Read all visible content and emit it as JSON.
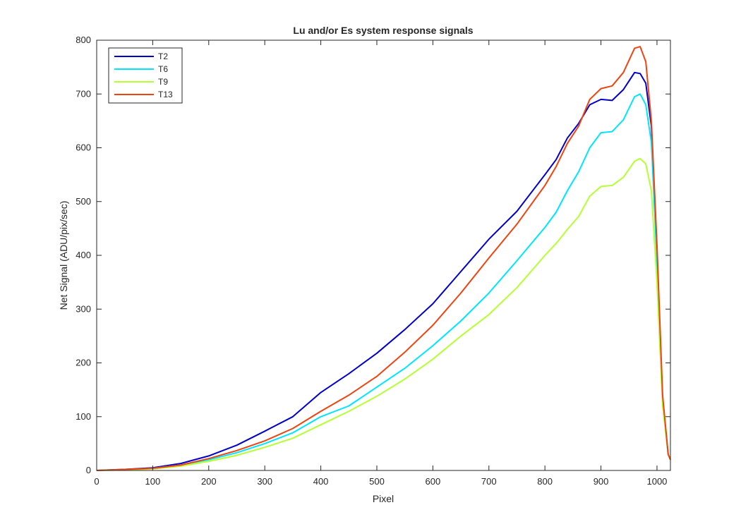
{
  "chart_data": {
    "type": "line",
    "title": "Lu and/or Es system response signals",
    "xlabel": "Pixel",
    "ylabel": "Net Signal (ADU/pix/sec)",
    "xlim": [
      0,
      1024
    ],
    "ylim": [
      0,
      800
    ],
    "xticks": [
      0,
      100,
      200,
      300,
      400,
      500,
      600,
      700,
      800,
      900,
      1000
    ],
    "yticks": [
      0,
      100,
      200,
      300,
      400,
      500,
      600,
      700,
      800
    ],
    "grid": false,
    "legend_position": "top-left",
    "series": [
      {
        "name": "T2",
        "color": "#0000cc",
        "x": [
          0,
          50,
          100,
          150,
          200,
          250,
          300,
          350,
          400,
          450,
          500,
          550,
          600,
          650,
          700,
          750,
          800,
          820,
          840,
          860,
          880,
          900,
          920,
          940,
          960,
          970,
          980,
          990,
          1000,
          1010,
          1020,
          1024
        ],
        "y": [
          0,
          2,
          5,
          13,
          27,
          47,
          73,
          100,
          145,
          180,
          218,
          262,
          310,
          370,
          430,
          482,
          550,
          578,
          618,
          645,
          680,
          690,
          688,
          708,
          740,
          738,
          720,
          640,
          400,
          130,
          30,
          20
        ]
      },
      {
        "name": "T6",
        "color": "#00e5ff",
        "x": [
          0,
          50,
          100,
          150,
          200,
          250,
          300,
          350,
          400,
          450,
          500,
          550,
          600,
          650,
          700,
          750,
          800,
          820,
          840,
          860,
          880,
          900,
          920,
          940,
          960,
          970,
          980,
          990,
          1000,
          1010,
          1020,
          1024
        ],
        "y": [
          0,
          1,
          4,
          10,
          20,
          33,
          50,
          70,
          100,
          120,
          155,
          190,
          232,
          278,
          330,
          390,
          452,
          480,
          520,
          555,
          600,
          628,
          630,
          652,
          695,
          700,
          680,
          610,
          390,
          130,
          30,
          20
        ]
      },
      {
        "name": "T9",
        "color": "#b5ff33",
        "x": [
          0,
          50,
          100,
          150,
          200,
          250,
          300,
          350,
          400,
          450,
          500,
          550,
          600,
          650,
          700,
          750,
          800,
          820,
          840,
          860,
          880,
          900,
          920,
          940,
          960,
          970,
          980,
          990,
          1000,
          1010,
          1020,
          1024
        ],
        "y": [
          0,
          1,
          3,
          8,
          17,
          28,
          43,
          60,
          85,
          110,
          138,
          170,
          207,
          250,
          290,
          340,
          400,
          422,
          448,
          472,
          510,
          528,
          530,
          545,
          575,
          580,
          570,
          520,
          350,
          120,
          30,
          20
        ]
      },
      {
        "name": "T13",
        "color": "#ee4411",
        "x": [
          0,
          50,
          100,
          150,
          200,
          250,
          300,
          350,
          400,
          450,
          500,
          550,
          600,
          650,
          700,
          750,
          800,
          820,
          840,
          860,
          880,
          900,
          920,
          940,
          960,
          970,
          980,
          990,
          1000,
          1010,
          1020,
          1024
        ],
        "y": [
          0,
          2,
          4,
          10,
          22,
          37,
          55,
          78,
          110,
          140,
          175,
          220,
          270,
          330,
          395,
          458,
          530,
          565,
          608,
          640,
          690,
          710,
          715,
          740,
          785,
          788,
          760,
          650,
          420,
          140,
          30,
          20
        ]
      }
    ]
  }
}
